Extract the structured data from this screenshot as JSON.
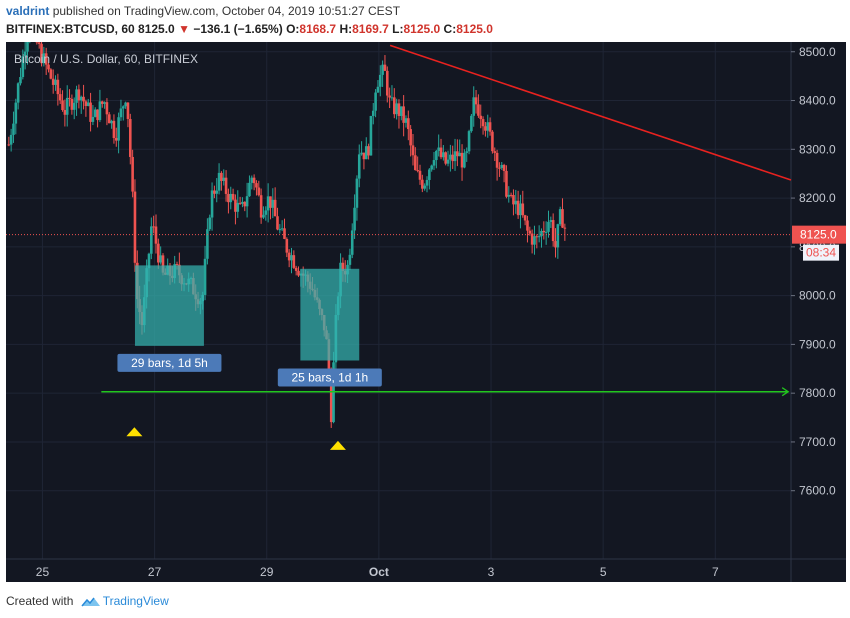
{
  "header": {
    "author": "valdrint",
    "published_text": "published on TradingView.com, October 04, 2019 10:51:27 CEST",
    "symbol": "BITFINEX:BTCUSD, 60",
    "last": "8125.0",
    "change": "−136.1 (−1.65%)",
    "o_label": "O:",
    "o_value": "8168.7",
    "h_label": "H:",
    "h_value": "8169.7",
    "l_label": "L:",
    "l_value": "8125.0",
    "c_label": "C:",
    "c_value": "8125.0"
  },
  "footer": {
    "created_with": "Created with",
    "brand": "TradingView"
  },
  "colors": {
    "background": "#131722",
    "up": "#26a69a",
    "down": "#ef5350",
    "trendline": "#e8221f",
    "support": "#22c51d",
    "marker": "#ffe100",
    "range_box": "#35b3b0",
    "label_bg": "#4c7ab8"
  },
  "chart_data": {
    "type": "candlestick",
    "legend": "Bitcoin / U.S. Dollar, 60, BITFINEX",
    "x_ticks": [
      "25",
      "27",
      "29",
      "Oct",
      "3",
      "5",
      "7"
    ],
    "x_tick_days": [
      25,
      27,
      29,
      31,
      33,
      35,
      37
    ],
    "y_ticks": [
      "8500.0",
      "8400.0",
      "8300.0",
      "8200.0",
      "8100.0",
      "8000.0",
      "7900.0",
      "7800.0",
      "7700.0",
      "7600.0"
    ],
    "ylim": [
      7460,
      8520
    ],
    "xlim": [
      24.35,
      38.35
    ],
    "price_label": "8125.0",
    "countdown_label": "08:34",
    "close_path_days": [
      24.4,
      24.75,
      25.1,
      25.4,
      25.65,
      25.9,
      26.1,
      26.3,
      26.5,
      26.6,
      26.68,
      26.78,
      26.95,
      27.15,
      27.4,
      27.65,
      27.85,
      28.0,
      28.15,
      28.35,
      28.55,
      28.75,
      28.9,
      29.05,
      29.2,
      29.35,
      29.6,
      29.8,
      29.95,
      30.05,
      30.15,
      30.22,
      30.3,
      30.45,
      30.65,
      30.8,
      30.95,
      31.1,
      31.2,
      31.35,
      31.5,
      31.65,
      31.8,
      32.0,
      32.2,
      32.4,
      32.55,
      32.7,
      32.85,
      33.0,
      33.2,
      33.35,
      33.5,
      33.65,
      33.8,
      33.95,
      34.05,
      34.15,
      34.25,
      34.35
    ],
    "close_path_prices": [
      8310,
      8560,
      8460,
      8380,
      8420,
      8360,
      8400,
      8330,
      8420,
      8220,
      8000,
      7940,
      8150,
      8040,
      8050,
      8020,
      7990,
      8200,
      8240,
      8200,
      8170,
      8250,
      8180,
      8200,
      8140,
      8100,
      8050,
      8020,
      7960,
      7930,
      7760,
      7920,
      8050,
      8060,
      8300,
      8290,
      8440,
      8460,
      8390,
      8380,
      8350,
      8250,
      8230,
      8300,
      8270,
      8290,
      8270,
      8400,
      8370,
      8320,
      8250,
      8190,
      8180,
      8130,
      8110,
      8140,
      8160,
      8100,
      8170,
      8125
    ],
    "annotations": [
      {
        "type": "trendline",
        "start": [
          31.2,
          8513
        ],
        "end": [
          38.35,
          8237
        ]
      },
      {
        "type": "horizontal",
        "y": 7803,
        "start_day": 26.05,
        "end_day": 38.3
      },
      {
        "type": "date_range",
        "label": "29 bars, 1d 5h",
        "start_day": 26.65,
        "end_day": 27.88,
        "low": 7897,
        "high": 8062
      },
      {
        "type": "date_range",
        "label": "25 bars, 1d 1h",
        "start_day": 29.6,
        "end_day": 30.65,
        "low": 7867,
        "high": 8055
      },
      {
        "type": "marker",
        "day": 26.64,
        "price": 7722
      },
      {
        "type": "marker",
        "day": 30.27,
        "price": 7694
      }
    ]
  }
}
